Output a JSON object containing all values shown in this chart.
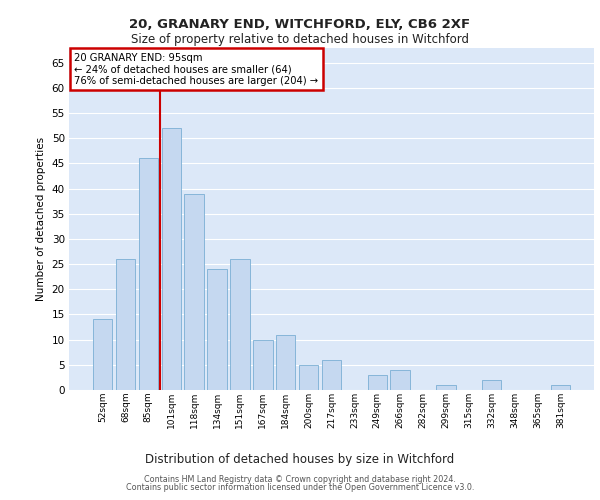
{
  "title1": "20, GRANARY END, WITCHFORD, ELY, CB6 2XF",
  "title2": "Size of property relative to detached houses in Witchford",
  "xlabel": "Distribution of detached houses by size in Witchford",
  "ylabel": "Number of detached properties",
  "footer1": "Contains HM Land Registry data © Crown copyright and database right 2024.",
  "footer2": "Contains public sector information licensed under the Open Government Licence v3.0.",
  "annotation_line1": "20 GRANARY END: 95sqm",
  "annotation_line2": "← 24% of detached houses are smaller (64)",
  "annotation_line3": "76% of semi-detached houses are larger (204) →",
  "bar_labels": [
    "52sqm",
    "68sqm",
    "85sqm",
    "101sqm",
    "118sqm",
    "134sqm",
    "151sqm",
    "167sqm",
    "184sqm",
    "200sqm",
    "217sqm",
    "233sqm",
    "249sqm",
    "266sqm",
    "282sqm",
    "299sqm",
    "315sqm",
    "332sqm",
    "348sqm",
    "365sqm",
    "381sqm"
  ],
  "bar_values": [
    14,
    26,
    46,
    52,
    39,
    24,
    26,
    10,
    11,
    5,
    6,
    0,
    3,
    4,
    0,
    1,
    0,
    2,
    0,
    0,
    1
  ],
  "bar_color": "#c5d8f0",
  "bar_edge_color": "#7bafd4",
  "vline_x": 2.5,
  "vline_color": "#cc0000",
  "annotation_box_color": "#cc0000",
  "ylim": [
    0,
    68
  ],
  "yticks": [
    0,
    5,
    10,
    15,
    20,
    25,
    30,
    35,
    40,
    45,
    50,
    55,
    60,
    65
  ],
  "bg_color": "#dce8f8",
  "grid_color": "#ffffff"
}
